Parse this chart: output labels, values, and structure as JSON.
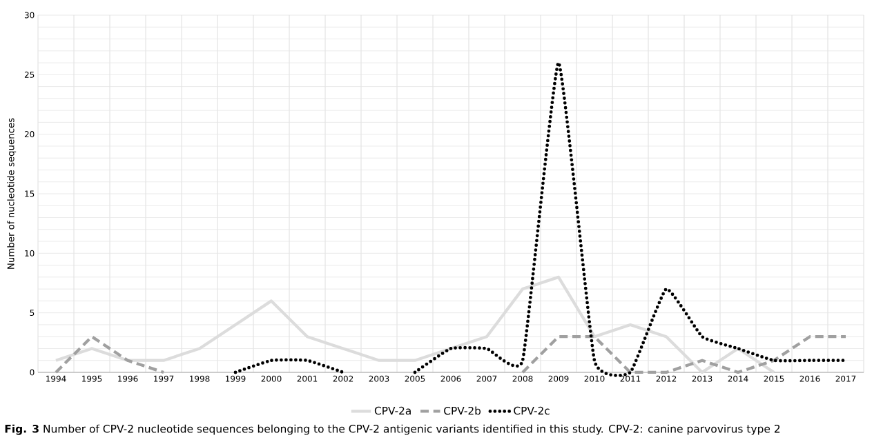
{
  "chart_data": {
    "type": "line",
    "ylabel": "Number of nucleotide sequences",
    "categories": [
      "1994",
      "1995",
      "1996",
      "1997",
      "1998",
      "1999",
      "2000",
      "2001",
      "2002",
      "2003",
      "2005",
      "2006",
      "2007",
      "2008",
      "2009",
      "2010",
      "2011",
      "2012",
      "2013",
      "2014",
      "2015",
      "2016",
      "2017"
    ],
    "series": [
      {
        "name": "CPV-2a",
        "color": "#dcdcdc",
        "line_style": "solid",
        "values": [
          1,
          2,
          1,
          1,
          2,
          4,
          6,
          3,
          2,
          1,
          1,
          2,
          3,
          7,
          8,
          3,
          4,
          3,
          0,
          2,
          0,
          null,
          null
        ]
      },
      {
        "name": "CPV-2b",
        "color": "#a0a0a0",
        "line_style": "dashed",
        "values": [
          0,
          3,
          1,
          0,
          null,
          null,
          null,
          null,
          null,
          null,
          null,
          null,
          null,
          0,
          3,
          3,
          0,
          0,
          1,
          0,
          1,
          3,
          3
        ]
      },
      {
        "name": "CPV-2c",
        "color": "#000000",
        "line_style": "dotted",
        "values": [
          null,
          null,
          null,
          null,
          null,
          0,
          1,
          1,
          0,
          null,
          0,
          2,
          2,
          1,
          26,
          1,
          0,
          7,
          3,
          2,
          1,
          1,
          1
        ]
      }
    ],
    "ylim": [
      0,
      30
    ],
    "yticks": [
      0,
      {
        "value": 1,
        "label": null
      },
      {
        "value": 2,
        "label": null
      },
      {
        "value": 3,
        "label": null
      },
      {
        "value": 4,
        "label": null
      },
      5,
      {
        "value": 6,
        "label": null
      },
      {
        "value": 7,
        "label": null
      },
      {
        "value": 8,
        "label": null
      },
      {
        "value": 9,
        "label": null
      },
      10,
      {
        "value": 11,
        "label": null
      },
      {
        "value": 12,
        "label": null
      },
      {
        "value": 13,
        "label": null
      },
      {
        "value": 14,
        "label": null
      },
      15,
      {
        "value": 16,
        "label": null
      },
      {
        "value": 17,
        "label": null
      },
      {
        "value": 18,
        "label": null
      },
      {
        "value": 19,
        "label": null
      },
      20,
      {
        "value": 21,
        "label": null
      },
      {
        "value": 22,
        "label": null
      },
      {
        "value": 23,
        "label": null
      },
      {
        "value": 24,
        "label": null
      },
      25,
      {
        "value": 26,
        "label": null
      },
      {
        "value": 27,
        "label": null
      },
      {
        "value": 28,
        "label": null
      },
      {
        "value": 29,
        "label": null
      },
      30
    ],
    "grid": true,
    "legend": "bottom",
    "annotations": [
      "**Fig. 3** Number of CPV-2 nucleotide sequences belonging to the CPV-2 antigenic variants identified in this study. CPV-2: canine parvovirus type 2"
    ]
  }
}
